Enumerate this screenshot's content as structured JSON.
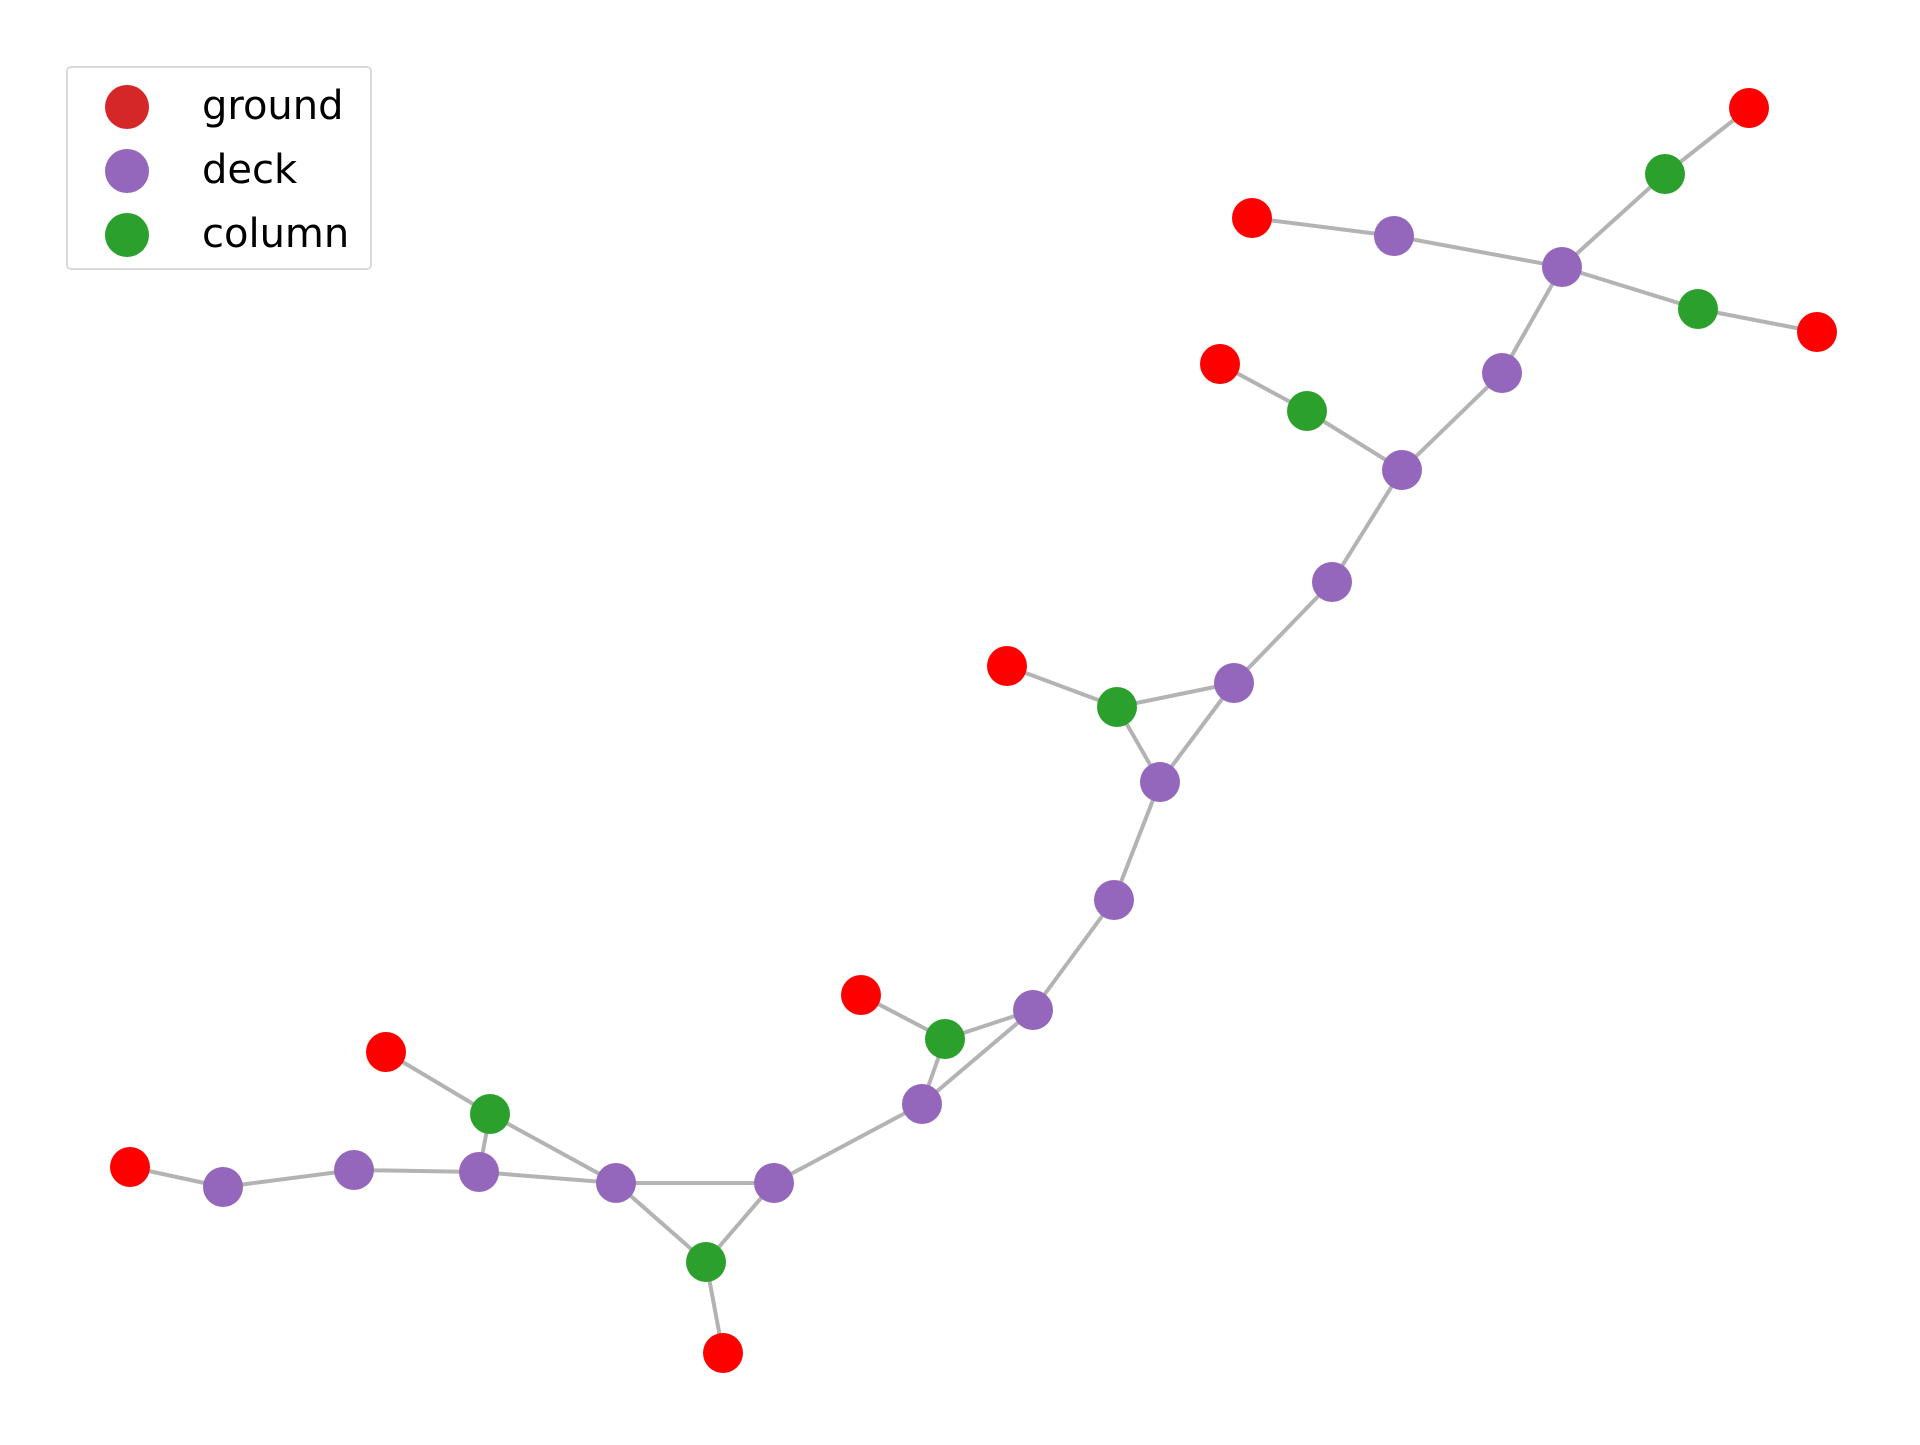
{
  "diagram": {
    "edge_color": "#b3b3b3",
    "legend": [
      {
        "label": "ground",
        "color": "#d62728"
      },
      {
        "label": "deck",
        "color": "#9467bd"
      },
      {
        "label": "column",
        "color": "#2ca02c"
      }
    ],
    "node_colors": {
      "ground": "#ff0000",
      "deck": "#9467bd",
      "column": "#2ca02c"
    },
    "nodes": [
      {
        "id": "g1",
        "type": "ground"
      },
      {
        "id": "d1",
        "type": "deck"
      },
      {
        "id": "d2",
        "type": "deck"
      },
      {
        "id": "d3",
        "type": "deck"
      },
      {
        "id": "c1",
        "type": "column"
      },
      {
        "id": "g2",
        "type": "ground"
      },
      {
        "id": "d4",
        "type": "deck"
      },
      {
        "id": "c2",
        "type": "column"
      },
      {
        "id": "g3",
        "type": "ground"
      },
      {
        "id": "d5",
        "type": "deck"
      },
      {
        "id": "d6",
        "type": "deck"
      },
      {
        "id": "c3",
        "type": "column"
      },
      {
        "id": "g4",
        "type": "ground"
      },
      {
        "id": "d7",
        "type": "deck"
      },
      {
        "id": "d8",
        "type": "deck"
      },
      {
        "id": "d9",
        "type": "deck"
      },
      {
        "id": "c4",
        "type": "column"
      },
      {
        "id": "g5",
        "type": "ground"
      },
      {
        "id": "d10",
        "type": "deck"
      },
      {
        "id": "d11",
        "type": "deck"
      },
      {
        "id": "d12",
        "type": "deck"
      },
      {
        "id": "c5",
        "type": "column"
      },
      {
        "id": "g6",
        "type": "ground"
      },
      {
        "id": "d13",
        "type": "deck"
      },
      {
        "id": "d14",
        "type": "deck"
      },
      {
        "id": "d15",
        "type": "deck"
      },
      {
        "id": "g7",
        "type": "ground"
      },
      {
        "id": "c6",
        "type": "column"
      },
      {
        "id": "g8",
        "type": "ground"
      },
      {
        "id": "c7",
        "type": "column"
      },
      {
        "id": "g9",
        "type": "ground"
      }
    ],
    "edges": [
      [
        "g1",
        "d1"
      ],
      [
        "d1",
        "d2"
      ],
      [
        "d2",
        "d3"
      ],
      [
        "d3",
        "d4"
      ],
      [
        "c1",
        "d3"
      ],
      [
        "c1",
        "g2"
      ],
      [
        "c1",
        "d4"
      ],
      [
        "d4",
        "c2"
      ],
      [
        "d4",
        "d5"
      ],
      [
        "c2",
        "d5"
      ],
      [
        "c2",
        "g3"
      ],
      [
        "d5",
        "d6"
      ],
      [
        "d6",
        "c3"
      ],
      [
        "d6",
        "d7"
      ],
      [
        "c3",
        "d7"
      ],
      [
        "c3",
        "g4"
      ],
      [
        "d7",
        "d8"
      ],
      [
        "d8",
        "d9"
      ],
      [
        "d9",
        "c4"
      ],
      [
        "d9",
        "d10"
      ],
      [
        "c4",
        "d10"
      ],
      [
        "c4",
        "g5"
      ],
      [
        "d10",
        "d11"
      ],
      [
        "d11",
        "d12"
      ],
      [
        "d12",
        "c5"
      ],
      [
        "c5",
        "g6"
      ],
      [
        "d12",
        "d13"
      ],
      [
        "d13",
        "d14"
      ],
      [
        "d14",
        "d15"
      ],
      [
        "d15",
        "g7"
      ],
      [
        "d14",
        "c6"
      ],
      [
        "c6",
        "g8"
      ],
      [
        "d14",
        "c7"
      ],
      [
        "c7",
        "g9"
      ]
    ]
  }
}
